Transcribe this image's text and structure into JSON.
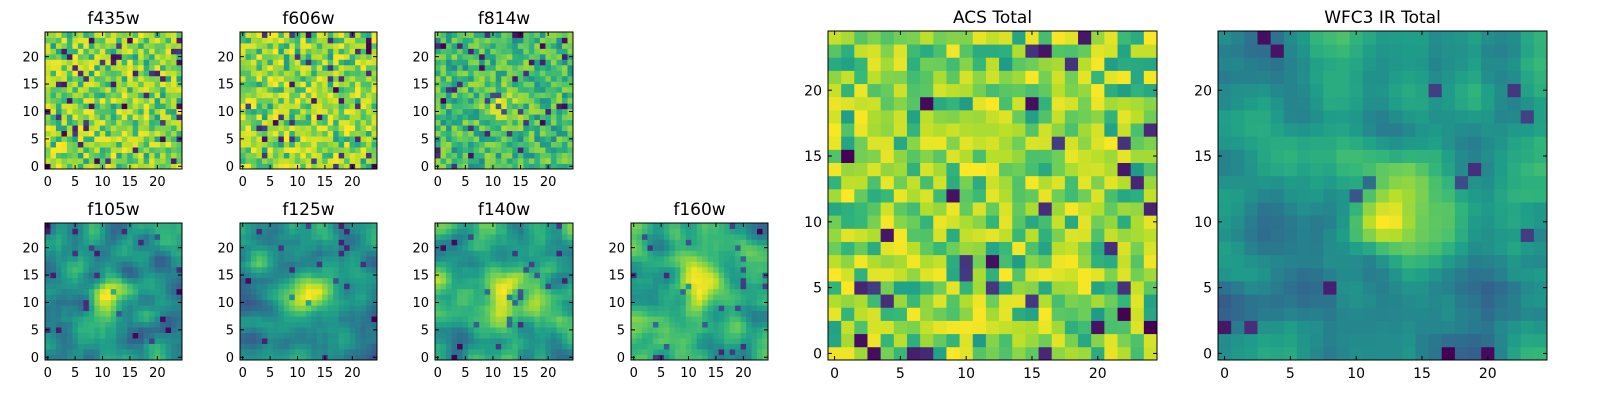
{
  "chart_data": [
    {
      "type": "heatmap",
      "title": "f435w",
      "grid_size": 25,
      "xticks": [
        0,
        5,
        10,
        15,
        20
      ],
      "yticks": [
        0,
        5,
        10,
        15,
        20
      ],
      "xlim": [
        -0.5,
        24.5
      ],
      "ylim": [
        -0.5,
        24.5
      ],
      "grid": false,
      "colormap": "viridis",
      "pattern": "noise",
      "seed": 11
    },
    {
      "type": "heatmap",
      "title": "f606w",
      "grid_size": 25,
      "xticks": [
        0,
        5,
        10,
        15,
        20
      ],
      "yticks": [
        0,
        5,
        10,
        15,
        20
      ],
      "xlim": [
        -0.5,
        24.5
      ],
      "ylim": [
        -0.5,
        24.5
      ],
      "grid": false,
      "colormap": "viridis",
      "pattern": "noise",
      "seed": 23
    },
    {
      "type": "heatmap",
      "title": "f814w",
      "grid_size": 25,
      "xticks": [
        0,
        5,
        10,
        15,
        20
      ],
      "yticks": [
        0,
        5,
        10,
        15,
        20
      ],
      "xlim": [
        -0.5,
        24.5
      ],
      "ylim": [
        -0.5,
        24.5
      ],
      "grid": false,
      "colormap": "viridis",
      "pattern": "noise-faint-center",
      "seed": 37
    },
    {
      "type": "heatmap",
      "title": "f105w",
      "grid_size": 25,
      "xticks": [
        0,
        5,
        10,
        15,
        20
      ],
      "yticks": [
        0,
        5,
        10,
        15,
        20
      ],
      "xlim": [
        -0.5,
        24.5
      ],
      "ylim": [
        -0.5,
        24.5
      ],
      "grid": false,
      "colormap": "viridis",
      "pattern": "smooth-source",
      "seed": 41
    },
    {
      "type": "heatmap",
      "title": "f125w",
      "grid_size": 25,
      "xticks": [
        0,
        5,
        10,
        15,
        20
      ],
      "yticks": [
        0,
        5,
        10,
        15,
        20
      ],
      "xlim": [
        -0.5,
        24.5
      ],
      "ylim": [
        -0.5,
        24.5
      ],
      "grid": false,
      "colormap": "viridis",
      "pattern": "smooth-source",
      "seed": 53
    },
    {
      "type": "heatmap",
      "title": "f140w",
      "grid_size": 25,
      "xticks": [
        0,
        5,
        10,
        15,
        20
      ],
      "yticks": [
        0,
        5,
        10,
        15,
        20
      ],
      "xlim": [
        -0.5,
        24.5
      ],
      "ylim": [
        -0.5,
        24.5
      ],
      "grid": false,
      "colormap": "viridis",
      "pattern": "smooth-source",
      "seed": 67
    },
    {
      "type": "heatmap",
      "title": "f160w",
      "grid_size": 25,
      "xticks": [
        0,
        5,
        10,
        15,
        20
      ],
      "yticks": [
        0,
        5,
        10,
        15,
        20
      ],
      "xlim": [
        -0.5,
        24.5
      ],
      "ylim": [
        -0.5,
        24.5
      ],
      "grid": false,
      "colormap": "viridis",
      "pattern": "smooth-source",
      "seed": 79
    },
    {
      "type": "heatmap",
      "title": "ACS Total",
      "grid_size": 25,
      "xticks": [
        0,
        5,
        10,
        15,
        20
      ],
      "yticks": [
        0,
        5,
        10,
        15,
        20
      ],
      "xlim": [
        -0.5,
        24.5
      ],
      "ylim": [
        -0.5,
        24.5
      ],
      "grid": false,
      "colormap": "viridis",
      "pattern": "noise",
      "seed": 97
    },
    {
      "type": "heatmap",
      "title": "WFC3 IR Total",
      "grid_size": 25,
      "xticks": [
        0,
        5,
        10,
        15,
        20
      ],
      "yticks": [
        0,
        5,
        10,
        15,
        20
      ],
      "xlim": [
        -0.5,
        24.5
      ],
      "ylim": [
        -0.5,
        24.5
      ],
      "grid": false,
      "colormap": "viridis",
      "pattern": "bright-source",
      "seed": 101
    }
  ]
}
